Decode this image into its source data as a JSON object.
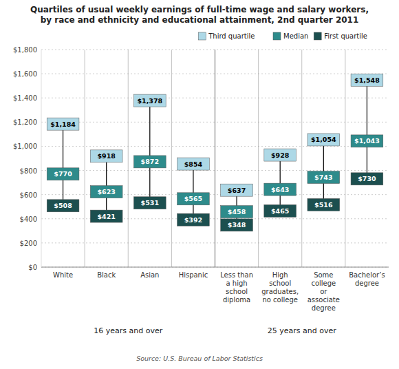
{
  "chart_data": {
    "type": "range",
    "title": "Quartiles of usual weekly earnings of full-time wage and salary workers,\nby race and ethnicity and educational attainment, 2nd quarter 2011",
    "categories": [
      "White",
      "Black",
      "Asian",
      "Hispanic",
      "Less than\na high\nschool\ndiploma",
      "High\nschool\ngraduates,\nno college",
      "Some\ncollege\nor\nassociate\ndegree",
      "Bachelor’s\ndegree"
    ],
    "groups": [
      {
        "label": "16 years and over",
        "size": 4
      },
      {
        "label": "25 years and over",
        "size": 4
      }
    ],
    "series": [
      {
        "name": "Third quartile",
        "color": "#add8e6",
        "values": [
          1184,
          918,
          1378,
          854,
          637,
          928,
          1054,
          1548
        ],
        "value_labels": [
          "$1,184",
          "$918",
          "$1,378",
          "$854",
          "$637",
          "$928",
          "$1,054",
          "$1,548"
        ]
      },
      {
        "name": "Median",
        "color": "#2e8b8b",
        "values": [
          770,
          623,
          872,
          565,
          458,
          643,
          743,
          1043
        ],
        "value_labels": [
          "$770",
          "$623",
          "$872",
          "$565",
          "$458",
          "$643",
          "$743",
          "$1,043"
        ]
      },
      {
        "name": "First quartile",
        "color": "#1c4f4f",
        "values": [
          508,
          421,
          531,
          392,
          348,
          465,
          516,
          730
        ],
        "value_labels": [
          "$508",
          "$421",
          "$531",
          "$392",
          "$348",
          "$465",
          "$516",
          "$730"
        ]
      }
    ],
    "ylim": [
      0,
      1800
    ],
    "yticks": [
      {
        "value": 0,
        "label": "$0"
      },
      {
        "value": 200,
        "label": "$200"
      },
      {
        "value": 400,
        "label": "$400"
      },
      {
        "value": 600,
        "label": "$600"
      },
      {
        "value": 800,
        "label": "$800"
      },
      {
        "value": 1000,
        "label": "$1,000"
      },
      {
        "value": 1200,
        "label": "$1,200"
      },
      {
        "value": 1400,
        "label": "$1,400"
      },
      {
        "value": 1600,
        "label": "$1,600"
      },
      {
        "value": 1800,
        "label": "$1,800"
      }
    ],
    "grid": true,
    "legend": "upper right",
    "data_labels": true,
    "source": "Source: U.S. Bureau of Labor Statistics"
  }
}
